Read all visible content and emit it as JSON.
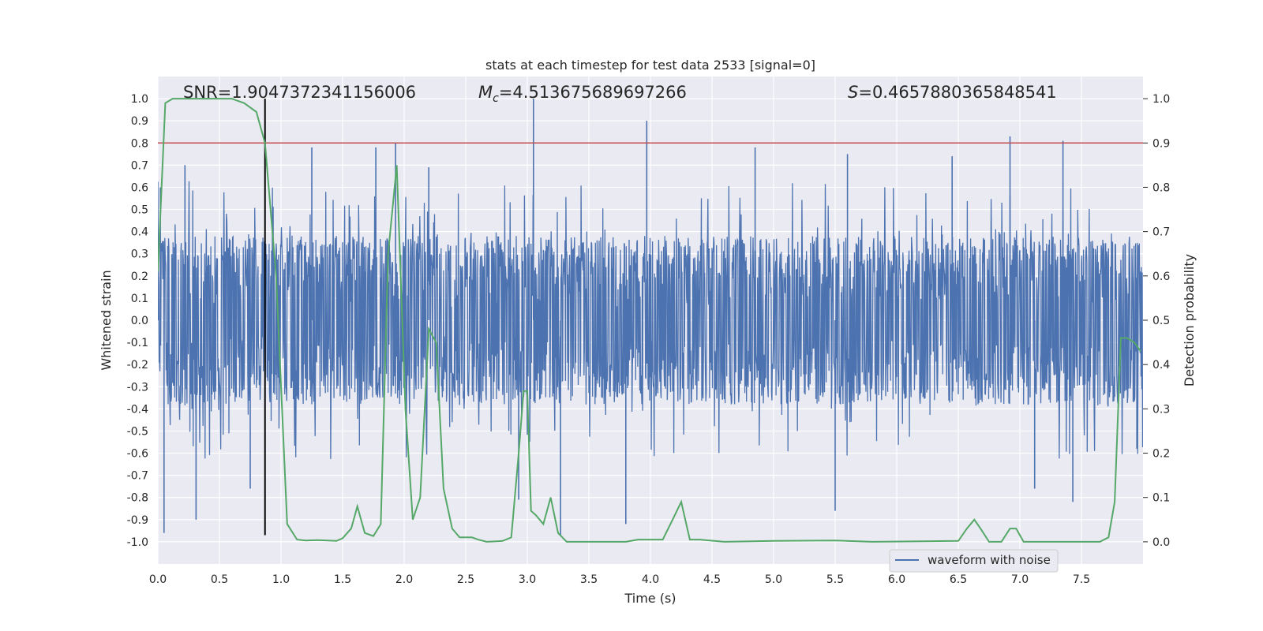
{
  "chart_data": {
    "type": "line",
    "title": "stats at each timestep for test data 2533 [signal=0]",
    "xlabel": "Time (s)",
    "ylabel": "Whitened strain",
    "y2label": "Detection probability",
    "xlim": [
      0.0,
      8.0
    ],
    "ylim": [
      -1.1,
      1.1
    ],
    "y2lim": [
      -0.05,
      1.05
    ],
    "xticks": [
      "0.0",
      "0.5",
      "1.0",
      "1.5",
      "2.0",
      "2.5",
      "3.0",
      "3.5",
      "4.0",
      "4.5",
      "5.0",
      "5.5",
      "6.0",
      "6.5",
      "7.0",
      "7.5"
    ],
    "yticks": [
      "1.0",
      "0.9",
      "0.8",
      "0.7",
      "0.6",
      "0.5",
      "0.4",
      "0.3",
      "0.2",
      "0.1",
      "0.0",
      "-0.1",
      "-0.2",
      "-0.3",
      "-0.4",
      "-0.5",
      "-0.6",
      "-0.7",
      "-0.8",
      "-0.9",
      "-1.0"
    ],
    "y2ticks": [
      "1.0",
      "0.9",
      "0.8",
      "0.7",
      "0.6",
      "0.5",
      "0.4",
      "0.3",
      "0.2",
      "0.1",
      "0.0"
    ],
    "grid": true,
    "legend_position": "lower-right",
    "annotations": {
      "snr": "SNR=1.9047372341156006",
      "mc_symbol": "M",
      "mc_sub": "c",
      "mc_value": "=4.513675689697266",
      "s_symbol": "S",
      "s_value": "=0.4657880365848541"
    },
    "threshold": {
      "axis": "secondary",
      "value": 0.9,
      "color": "#c44e52"
    },
    "marker_line": {
      "x": 0.87,
      "y_from": -0.97,
      "y_to": 1.0,
      "color": "#000000"
    },
    "series": [
      {
        "name": "waveform with noise",
        "axis": "primary",
        "color": "#4c72b0",
        "noise_amplitude": 0.38,
        "peaks": [
          {
            "x": 0.02,
            "y": 0.6
          },
          {
            "x": 0.05,
            "y": -0.96
          },
          {
            "x": 0.22,
            "y": 0.7
          },
          {
            "x": 0.31,
            "y": -0.9
          },
          {
            "x": 0.75,
            "y": -0.76
          },
          {
            "x": 1.25,
            "y": 0.78
          },
          {
            "x": 1.77,
            "y": 0.78
          },
          {
            "x": 1.93,
            "y": 0.8
          },
          {
            "x": 2.2,
            "y": 0.69
          },
          {
            "x": 2.93,
            "y": -0.81
          },
          {
            "x": 3.05,
            "y": 1.0
          },
          {
            "x": 3.27,
            "y": -0.97
          },
          {
            "x": 3.8,
            "y": -0.92
          },
          {
            "x": 3.97,
            "y": 0.9
          },
          {
            "x": 4.85,
            "y": 0.78
          },
          {
            "x": 5.5,
            "y": -0.86
          },
          {
            "x": 5.6,
            "y": 0.75
          },
          {
            "x": 6.45,
            "y": 0.74
          },
          {
            "x": 6.92,
            "y": 0.83
          },
          {
            "x": 7.12,
            "y": -0.76
          },
          {
            "x": 7.35,
            "y": 0.81
          },
          {
            "x": 7.43,
            "y": -0.82
          },
          {
            "x": 7.95,
            "y": -0.58
          }
        ]
      },
      {
        "name": "",
        "axis": "secondary",
        "color": "#55a868",
        "x": [
          0.0,
          0.06,
          0.12,
          0.3,
          0.5,
          0.6,
          0.7,
          0.8,
          0.87,
          0.96,
          1.05,
          1.13,
          1.2,
          1.3,
          1.45,
          1.5,
          1.57,
          1.62,
          1.68,
          1.75,
          1.81,
          1.87,
          1.94,
          2.01,
          2.07,
          2.13,
          2.2,
          2.26,
          2.32,
          2.39,
          2.45,
          2.55,
          2.6,
          2.67,
          2.8,
          2.87,
          2.93,
          2.97,
          3.0,
          3.03,
          3.07,
          3.13,
          3.19,
          3.25,
          3.32,
          3.4,
          3.8,
          3.9,
          4.0,
          4.1,
          4.18,
          4.25,
          4.32,
          4.4,
          4.6,
          5.0,
          5.5,
          5.8,
          6.5,
          6.57,
          6.63,
          6.68,
          6.75,
          6.85,
          6.92,
          6.97,
          7.03,
          7.2,
          7.65,
          7.72,
          7.77,
          7.82,
          7.87,
          7.93,
          7.98
        ],
        "y": [
          0.61,
          0.99,
          1.0,
          1.0,
          1.0,
          1.0,
          0.99,
          0.97,
          0.9,
          0.6,
          0.04,
          0.005,
          0.003,
          0.004,
          0.002,
          0.008,
          0.03,
          0.08,
          0.02,
          0.013,
          0.04,
          0.65,
          0.85,
          0.3,
          0.05,
          0.1,
          0.48,
          0.45,
          0.12,
          0.03,
          0.01,
          0.01,
          0.005,
          0.0,
          0.002,
          0.01,
          0.2,
          0.34,
          0.34,
          0.07,
          0.06,
          0.04,
          0.1,
          0.02,
          0.0,
          0.0,
          0.0,
          0.005,
          0.005,
          0.005,
          0.05,
          0.09,
          0.005,
          0.005,
          0.0,
          0.002,
          0.003,
          0.0,
          0.002,
          0.03,
          0.05,
          0.03,
          0.0,
          0.0,
          0.03,
          0.03,
          0.0,
          0.0,
          0.0,
          0.01,
          0.09,
          0.46,
          0.46,
          0.45,
          0.43
        ]
      }
    ]
  }
}
